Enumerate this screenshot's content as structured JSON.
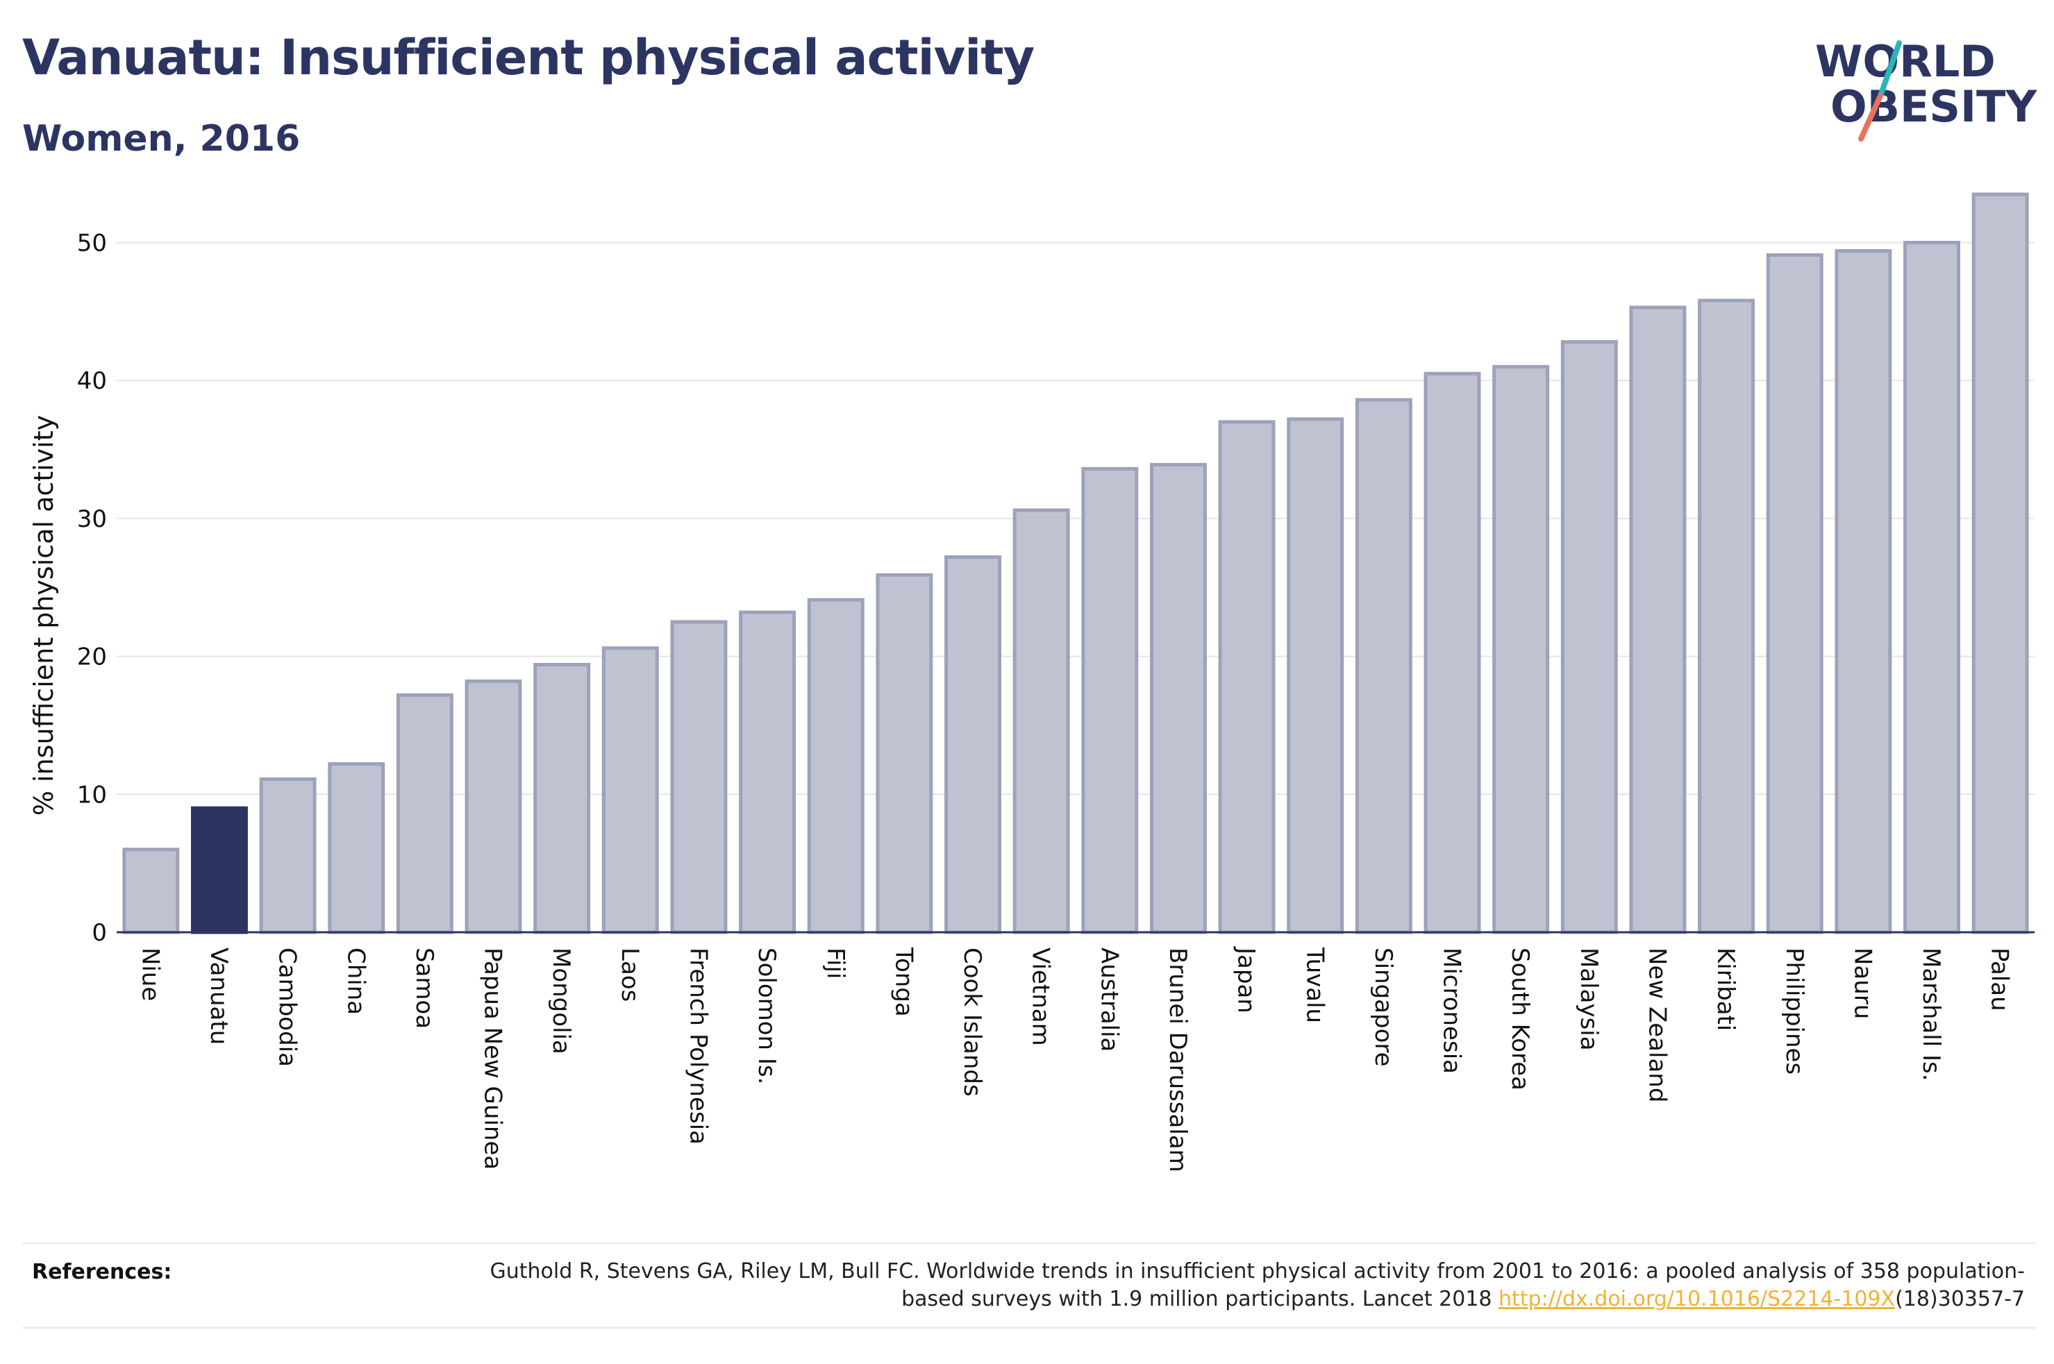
{
  "header": {
    "title": "Vanuatu: Insufficient physical activity",
    "subtitle": "Women, 2016"
  },
  "logo": {
    "line1": "WORLD",
    "line2": "OBESITY",
    "stroke_colors": [
      "#2bb5b9",
      "#e8735a"
    ]
  },
  "colors": {
    "bar_default": "#bfc2d0",
    "bar_default_border": "#9da2ba",
    "bar_highlight": "#2c3562",
    "axis": "#2c3562",
    "grid": "#e4e4e9",
    "link": "#f2b233"
  },
  "chart_data": {
    "type": "bar",
    "title": "Vanuatu: Insufficient physical activity",
    "subtitle": "Women, 2016",
    "xlabel": "",
    "ylabel": "% insufficient physical activity",
    "ylim": [
      0,
      54
    ],
    "yticks": [
      0,
      10,
      20,
      30,
      40,
      50
    ],
    "grid": true,
    "highlight": "Vanuatu",
    "categories": [
      "Niue",
      "Vanuatu",
      "Cambodia",
      "China",
      "Samoa",
      "Papua New Guinea",
      "Mongolia",
      "Laos",
      "French Polynesia",
      "Solomon Is.",
      "Fiji",
      "Tonga",
      "Cook Islands",
      "Vietnam",
      "Australia",
      "Brunei Darussalam",
      "Japan",
      "Tuvalu",
      "Singapore",
      "Micronesia",
      "South Korea",
      "Malaysia",
      "New Zealand",
      "Kiribati",
      "Philippines",
      "Nauru",
      "Marshall Is.",
      "Palau"
    ],
    "values": [
      6.0,
      9.0,
      11.1,
      12.2,
      17.2,
      18.2,
      19.4,
      20.6,
      22.5,
      23.2,
      24.1,
      25.9,
      27.2,
      30.6,
      33.6,
      33.9,
      37.0,
      37.2,
      38.6,
      40.5,
      41.0,
      42.8,
      45.3,
      45.8,
      49.1,
      49.4,
      50.0,
      53.5
    ]
  },
  "references": {
    "label": "References:",
    "text_before_link": "Guthold R, Stevens GA, Riley LM, Bull FC. Worldwide trends in insufficient physical activity from 2001 to 2016: a pooled analysis of 358 population-based surveys with 1.9 million participants. Lancet 2018 ",
    "link_text": "http://dx.doi.org/10.1016/S2214-109X",
    "text_after_link": "(18)30357-7"
  }
}
